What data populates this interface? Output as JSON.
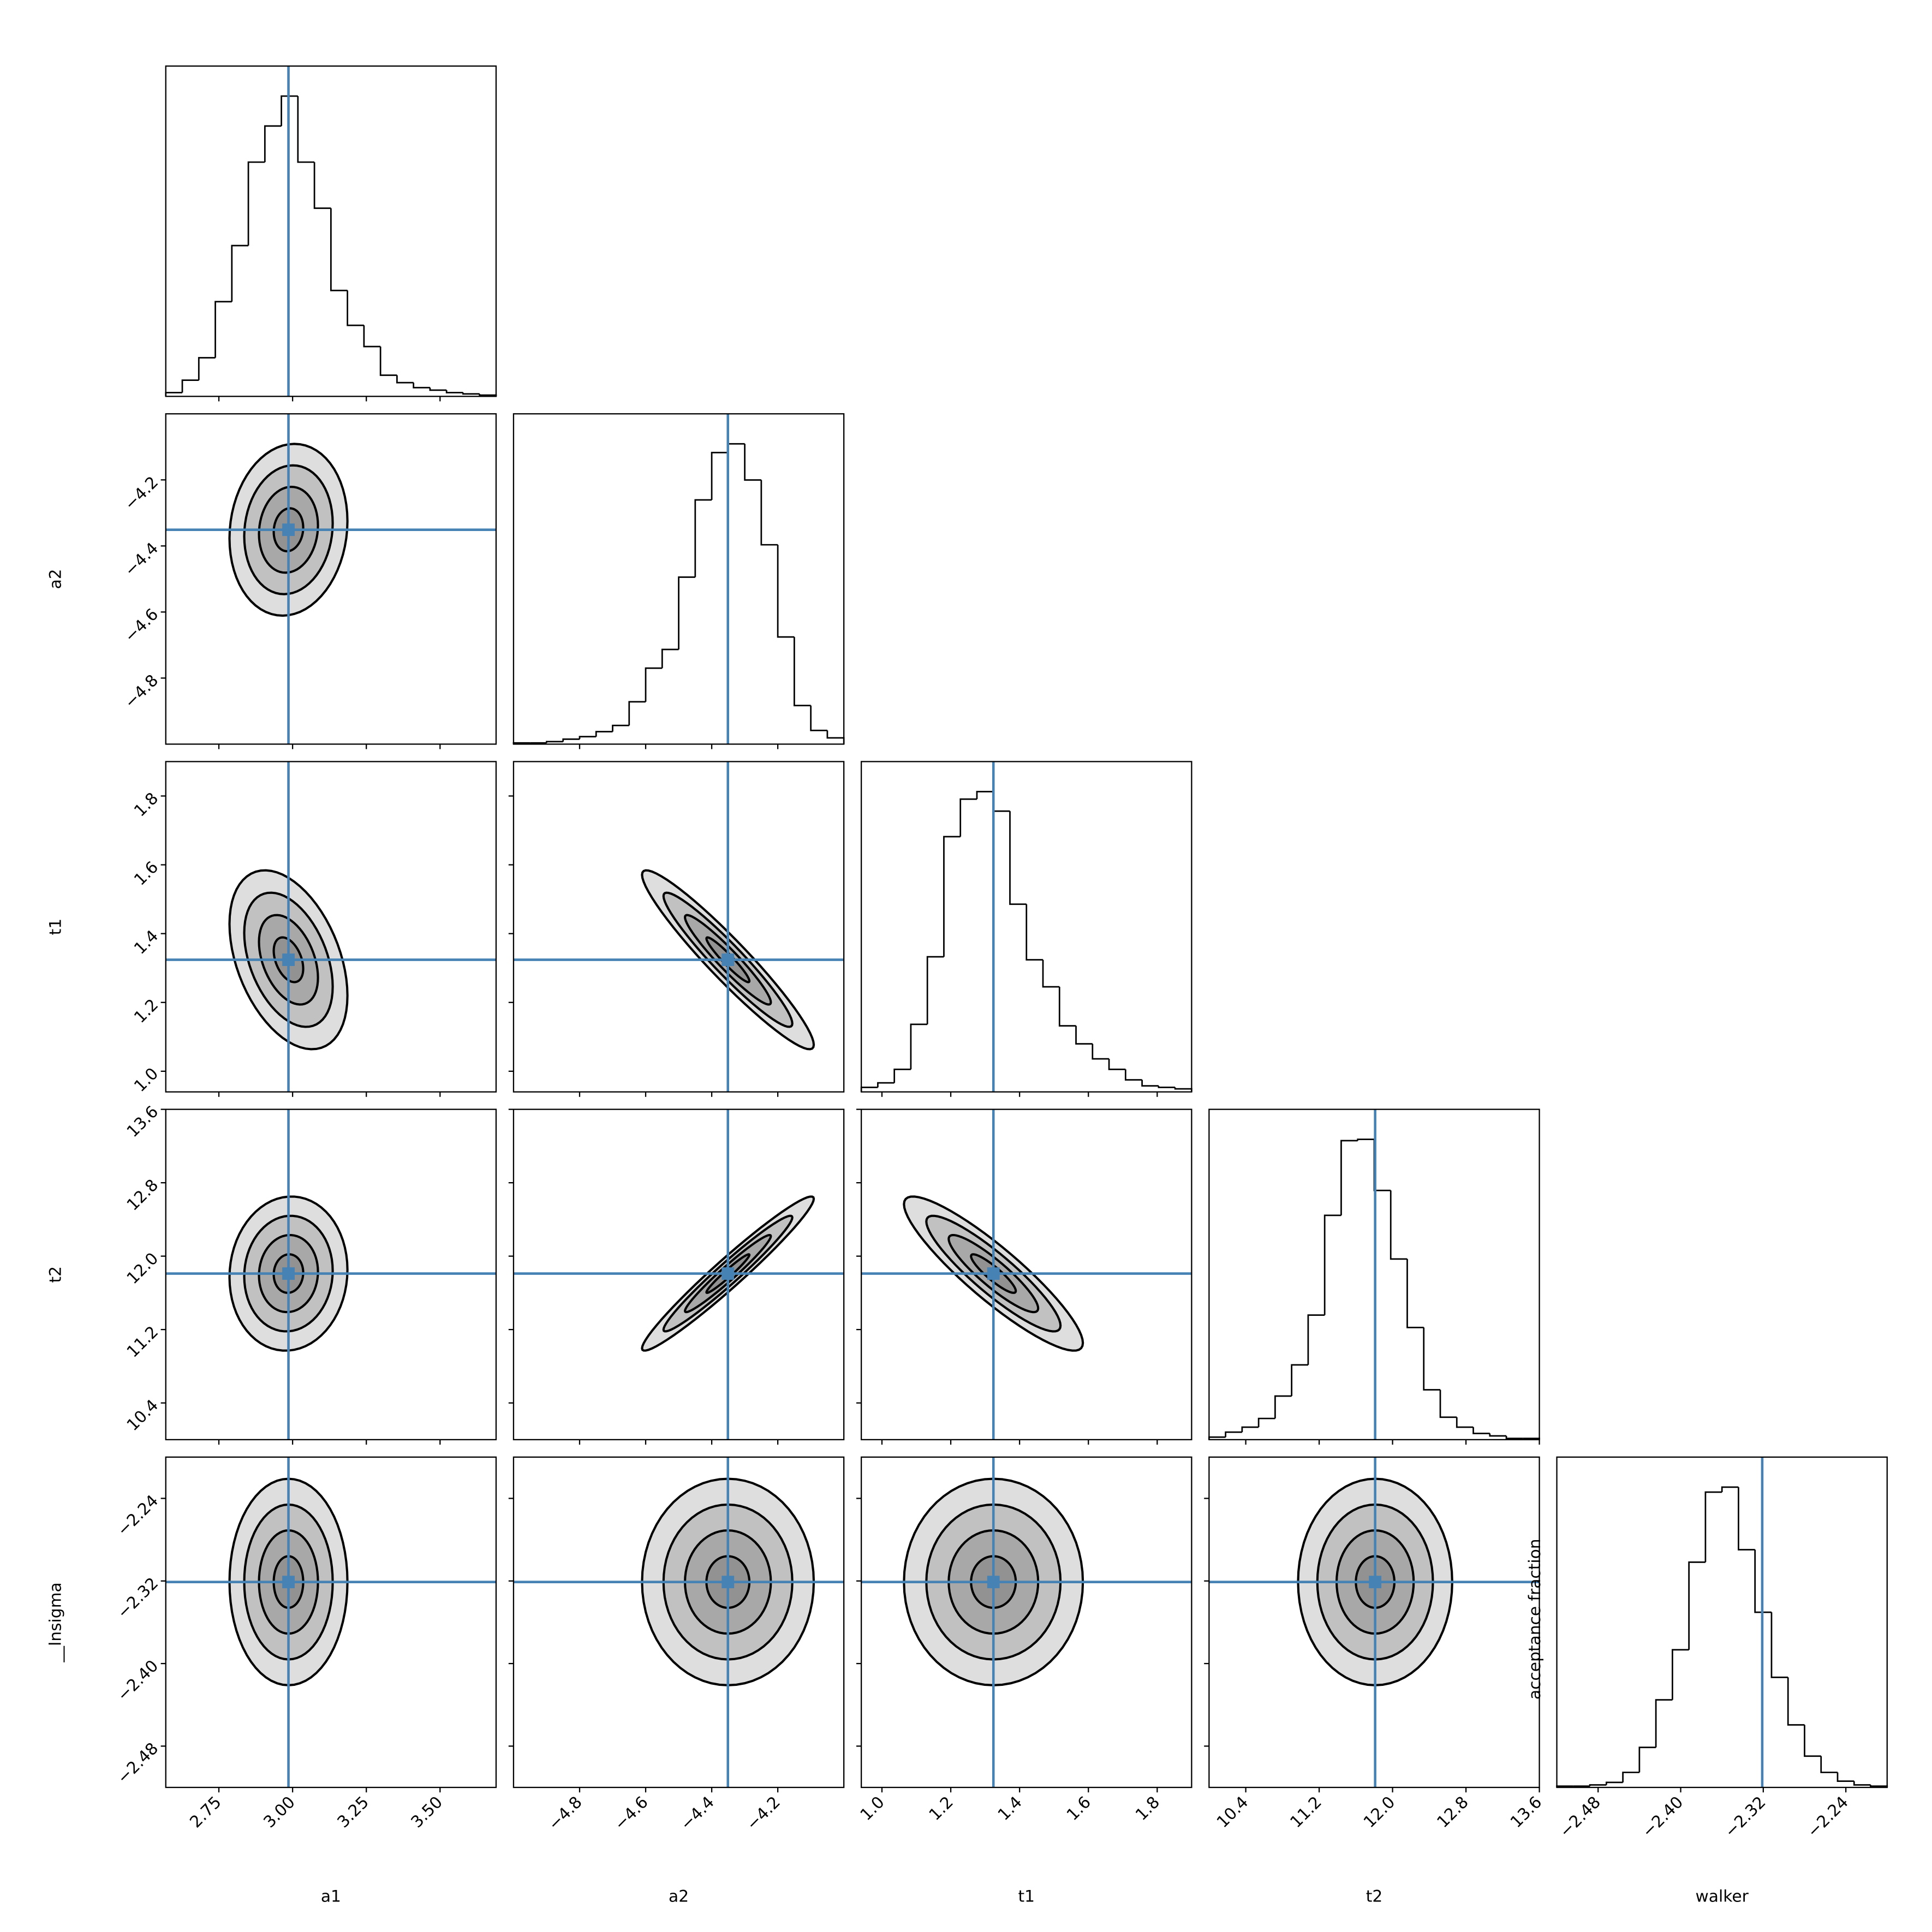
{
  "chart_data": {
    "type": "corner",
    "truth_color": "#4682b4",
    "annotation": "acceptance fraction",
    "contour_levels": [
      0.5,
      1,
      1.5,
      2
    ],
    "correlations": [
      [],
      [
        0.1
      ],
      [
        -0.4,
        -0.95
      ],
      [
        0.05,
        0.97,
        -0.9
      ],
      [
        0,
        0,
        0,
        0
      ]
    ],
    "variables": [
      {
        "x_label": "a1",
        "truth": 2.986,
        "sigma": 0.1,
        "xlim": [
          2.57,
          3.69
        ],
        "xticks": [
          2.75,
          {
            "value": 3,
            "label": "3.00"
          },
          3.25,
          {
            "value": 3.5,
            "label": "3.50"
          }
        ],
        "bins": [
          2.57,
          2.626,
          2.682,
          2.738,
          2.794,
          2.85,
          2.906,
          2.962,
          3.018,
          3.074,
          3.13,
          3.186,
          3.242,
          3.298,
          3.354,
          3.41,
          3.466,
          3.522,
          3.578,
          3.634,
          3.69
        ],
        "counts": [
          3,
          13,
          31,
          76,
          121,
          188,
          217,
          241,
          188,
          151,
          85,
          57,
          40,
          17,
          11,
          7,
          5,
          3,
          2,
          1
        ]
      },
      {
        "x_label": "a2",
        "y_label": "a2",
        "truth": -4.351,
        "sigma": 0.13,
        "xlim": [
          -5,
          -4
        ],
        "xticks": [
          {
            "value": -4.8,
            "label": "−4.8"
          },
          {
            "value": -4.6,
            "label": "−4.6"
          },
          {
            "value": -4.4,
            "label": "−4.4"
          },
          {
            "value": -4.2,
            "label": "−4.2"
          }
        ],
        "bins": [
          -5,
          -4.95,
          -4.9,
          -4.85,
          -4.8,
          -4.75,
          -4.7,
          -4.65,
          -4.6,
          -4.55,
          -4.5,
          -4.45,
          -4.4,
          -4.35,
          -4.3,
          -4.25,
          -4.2,
          -4.15,
          -4.1,
          -4.05,
          -4
        ],
        "counts": [
          1,
          1,
          2,
          4,
          6,
          10,
          15,
          34,
          61,
          76,
          134,
          196,
          234,
          241,
          212,
          160,
          86,
          31,
          11,
          5
        ]
      },
      {
        "x_label": "t1",
        "y_label": "t1",
        "truth": 1.324,
        "sigma": 0.13,
        "xlim": [
          0.94,
          1.9
        ],
        "xticks": [
          {
            "value": 1,
            "label": "1.0"
          },
          1.2,
          1.4,
          1.6,
          1.8
        ],
        "bins": [
          0.94,
          0.988,
          1.036,
          1.084,
          1.132,
          1.18,
          1.228,
          1.276,
          1.324,
          1.372,
          1.42,
          1.468,
          1.516,
          1.564,
          1.612,
          1.66,
          1.708,
          1.756,
          1.804,
          1.852,
          1.9
        ],
        "counts": [
          3,
          6,
          15,
          45,
          90,
          170,
          195,
          200,
          187,
          125,
          88,
          70,
          44,
          32,
          22,
          15,
          8,
          4,
          3,
          2
        ]
      },
      {
        "x_label": "t2",
        "y_label": "t2",
        "truth": 11.81,
        "sigma": 0.42,
        "xlim": [
          10,
          13.6
        ],
        "xticks": [
          10.4,
          11.2,
          {
            "value": 12,
            "label": "12.0"
          },
          12.8,
          13.6
        ],
        "bins": [
          10,
          10.18,
          10.36,
          10.54,
          10.72,
          10.9,
          11.08,
          11.26,
          11.44,
          11.62,
          11.8,
          11.98,
          12.16,
          12.34,
          12.52,
          12.7,
          12.88,
          13.06,
          13.24,
          13.42,
          13.6
        ],
        "counts": [
          2,
          6,
          10,
          17,
          35,
          60,
          100,
          180,
          240,
          241,
          200,
          145,
          90,
          40,
          18,
          10,
          5,
          3,
          1,
          1
        ]
      },
      {
        "x_label": "walker",
        "y_label": "__lnsigma",
        "truth": -2.321,
        "sigma": 0.05,
        "xlim": [
          -2.52,
          -2.2
        ],
        "xticks": [
          {
            "value": -2.48,
            "label": "−2.48"
          },
          {
            "value": -2.4,
            "label": "−2.40"
          },
          {
            "value": -2.32,
            "label": "−2.32"
          },
          {
            "value": -2.24,
            "label": "−2.24"
          }
        ],
        "bins": [
          -2.52,
          -2.504,
          -2.488,
          -2.472,
          -2.456,
          -2.44,
          -2.424,
          -2.408,
          -2.392,
          -2.376,
          -2.36,
          -2.344,
          -2.328,
          -2.312,
          -2.296,
          -2.28,
          -2.264,
          -2.248,
          -2.232,
          -2.216,
          -2.2
        ],
        "counts": [
          1,
          1,
          2,
          4,
          12,
          32,
          70,
          110,
          180,
          236,
          240,
          190,
          140,
          88,
          50,
          25,
          12,
          5,
          2,
          1
        ]
      }
    ]
  }
}
